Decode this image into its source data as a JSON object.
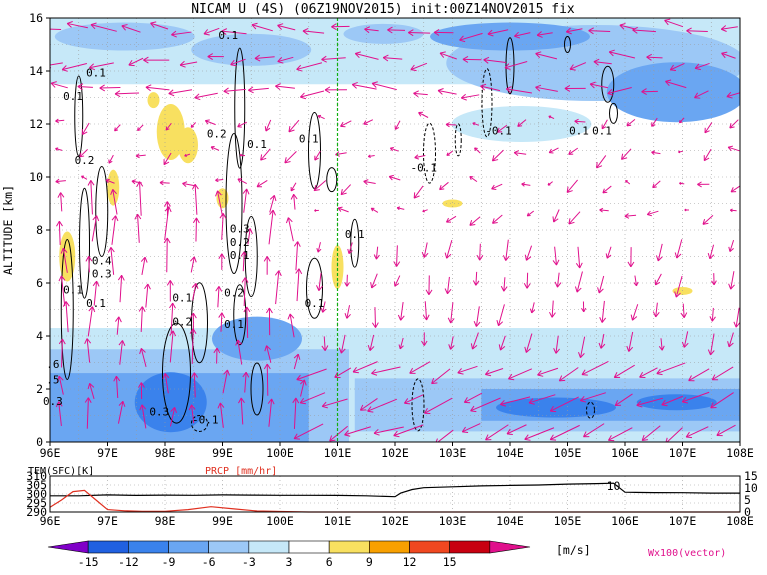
{
  "title": "NICAM U (4S) (06Z19NOV2015) init:00Z14NOV2015 fix",
  "colors": {
    "frame": "#000000",
    "grid": "#9a9a9a",
    "contour": "#000000",
    "vector": "#e0108c",
    "marker_line": "#10b010",
    "prcp": "#e03020",
    "tem": "#000000"
  },
  "chart_data": [
    {
      "type": "heatmap",
      "name": "main",
      "title": "NICAM U (4S) (06Z19NOV2015) init:00Z14NOV2015 fix",
      "xlabel": "",
      "ylabel": "ALTITUDE [km]",
      "xlim": [
        96,
        108
      ],
      "ylim": [
        0,
        16
      ],
      "x_ticks": [
        "96E",
        "97E",
        "98E",
        "99E",
        "100E",
        "101E",
        "102E",
        "103E",
        "104E",
        "105E",
        "106E",
        "107E",
        "108E"
      ],
      "y_ticks": [
        "0",
        "2",
        "4",
        "6",
        "8",
        "10",
        "12",
        "14",
        "16"
      ],
      "grid": true,
      "marker_longitude": 101,
      "contour_labels": [
        {
          "text": "0.1",
          "x": 99.1,
          "y": 15.2
        },
        {
          "text": "0.1",
          "x": 96.8,
          "y": 13.8
        },
        {
          "text": "0.1",
          "x": 96.4,
          "y": 12.9
        },
        {
          "text": "0.2",
          "x": 96.6,
          "y": 10.5
        },
        {
          "text": "0.2",
          "x": 98.9,
          "y": 11.5
        },
        {
          "text": "0.1",
          "x": 99.6,
          "y": 11.1
        },
        {
          "text": "0.1",
          "x": 100.5,
          "y": 11.3
        },
        {
          "text": "-0.1",
          "x": 102.5,
          "y": 10.2
        },
        {
          "text": "-0.1",
          "x": 103.8,
          "y": 11.6
        },
        {
          "text": "0.1",
          "x": 105.2,
          "y": 11.6
        },
        {
          "text": "0.4",
          "x": 96.9,
          "y": 6.7
        },
        {
          "text": "0.3",
          "x": 96.9,
          "y": 6.2
        },
        {
          "text": "0.1",
          "x": 96.4,
          "y": 5.6
        },
        {
          "text": "0.1",
          "x": 96.8,
          "y": 5.1
        },
        {
          "text": "0.3",
          "x": 99.3,
          "y": 7.9
        },
        {
          "text": "0.2",
          "x": 99.3,
          "y": 7.4
        },
        {
          "text": "0.1",
          "x": 99.3,
          "y": 6.9
        },
        {
          "text": "0.1",
          "x": 101.3,
          "y": 7.7
        },
        {
          "text": "0.1",
          "x": 98.3,
          "y": 5.3
        },
        {
          "text": "0.2",
          "x": 99.2,
          "y": 5.5
        },
        {
          "text": "0.1",
          "x": 100.6,
          "y": 5.1
        },
        {
          "text": "0.2",
          "x": 98.3,
          "y": 4.4
        },
        {
          "text": "0.1",
          "x": 99.2,
          "y": 4.3
        },
        {
          "text": "0.3",
          "x": 97.9,
          "y": 1.0
        },
        {
          "text": "-0.1",
          "x": 98.7,
          "y": 0.7
        },
        {
          "text": "0.1",
          "x": 105.6,
          "y": 11.6
        },
        {
          "text": ".6",
          "x": 96.05,
          "y": 2.8
        },
        {
          "text": ".5",
          "x": 96.05,
          "y": 2.2
        },
        {
          "text": "0.3",
          "x": 96.05,
          "y": 1.4
        }
      ]
    },
    {
      "type": "line",
      "name": "surface",
      "title": "",
      "series": [
        {
          "name": "TEM(SFC)[K]",
          "axis": "left",
          "ylim": [
            290,
            310
          ],
          "x": [
            96,
            96.5,
            97,
            97.5,
            98,
            98.5,
            99,
            99.5,
            100,
            100.5,
            101,
            101.5,
            102,
            102.1,
            102.3,
            102.5,
            103,
            103.5,
            104,
            104.5,
            105,
            105.5,
            105.8,
            106,
            106.5,
            107,
            107.5,
            108
          ],
          "values": [
            299,
            299,
            299.5,
            299.2,
            299.4,
            299.3,
            299.5,
            299.4,
            299.3,
            299.3,
            299.2,
            299,
            298.5,
            300.5,
            302.5,
            303.5,
            304,
            304.5,
            304.8,
            305,
            305.5,
            305.8,
            306,
            301,
            300.8,
            300.7,
            300.5,
            300.5
          ]
        },
        {
          "name": "PRCP [mm/hr]",
          "axis": "right",
          "ylim": [
            0,
            15
          ],
          "x": [
            96,
            96.2,
            96.4,
            96.6,
            96.8,
            97,
            97.3,
            97.6,
            98,
            98.4,
            98.8,
            99.2,
            99.6,
            100,
            100.5,
            101,
            102,
            103,
            104,
            105,
            106,
            107,
            108
          ],
          "values": [
            2,
            5,
            8.5,
            9,
            5,
            1,
            0.5,
            0.3,
            0.3,
            1,
            2.2,
            1.3,
            0.4,
            0.2,
            0,
            0,
            0,
            0,
            0,
            0,
            0,
            0,
            0
          ]
        }
      ],
      "xlim": [
        96,
        108
      ],
      "x_ticks": [
        "96E",
        "97E",
        "98E",
        "99E",
        "100E",
        "101E",
        "102E",
        "103E",
        "104E",
        "105E",
        "106E",
        "107E",
        "108E"
      ],
      "left_ticks": [
        "310",
        "305",
        "300",
        "295",
        "290"
      ],
      "right_ticks": [
        "15",
        "10",
        "5",
        "0"
      ],
      "annotation": "10"
    },
    {
      "type": "heatmap",
      "name": "colorbar",
      "levels": [
        "-15",
        "-12",
        "-9",
        "-6",
        "-3",
        "3",
        "6",
        "9",
        "12",
        "15"
      ],
      "colors": [
        "#8000c8",
        "#2060e0",
        "#3a82ec",
        "#6aa6f2",
        "#9cc8f6",
        "#c6e8f8",
        "#ffffff",
        "#f8e060",
        "#f8a000",
        "#f04820",
        "#c80010",
        "#e0108c"
      ],
      "unit": "[m/s]",
      "vector_label": "Wx100(vector)"
    }
  ]
}
